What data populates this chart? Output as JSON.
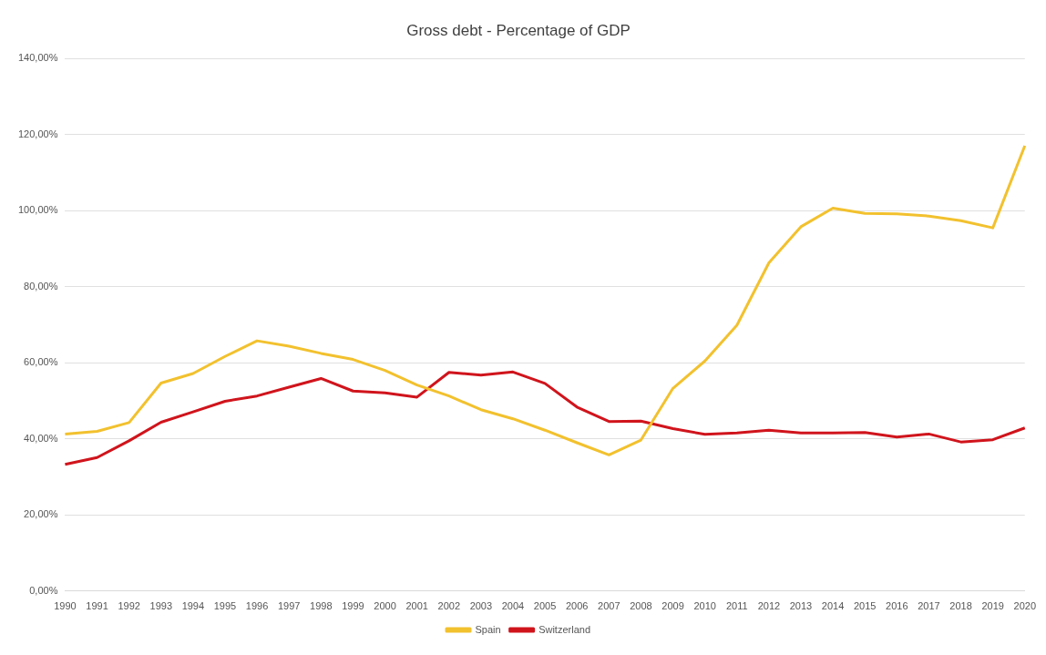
{
  "chart_data": {
    "type": "line",
    "title": "Gross debt - Percentage of GDP",
    "categories": [
      "1990",
      "1991",
      "1992",
      "1993",
      "1994",
      "1995",
      "1996",
      "1997",
      "1998",
      "1999",
      "2000",
      "2001",
      "2002",
      "2003",
      "2004",
      "2005",
      "2006",
      "2007",
      "2008",
      "2009",
      "2010",
      "2011",
      "2012",
      "2013",
      "2014",
      "2015",
      "2016",
      "2017",
      "2018",
      "2019",
      "2020"
    ],
    "series": [
      {
        "name": "Spain",
        "color": "#f2c12e",
        "values": [
          41.3,
          42,
          44.3,
          54.7,
          57.2,
          61.7,
          65.8,
          64.4,
          62.5,
          60.9,
          58,
          54.2,
          51.3,
          47.7,
          45.3,
          42.3,
          39,
          35.8,
          39.7,
          53.3,
          60.5,
          69.9,
          86.3,
          95.8,
          100.7,
          99.3,
          99.2,
          98.6,
          97.4,
          95.5,
          117.1
        ]
      },
      {
        "name": "Switzerland",
        "color": "#d0141c",
        "values": [
          33.3,
          35.1,
          39.5,
          44.4,
          47.1,
          49.9,
          51.3,
          53.6,
          55.9,
          52.6,
          52.1,
          51,
          57.5,
          56.8,
          57.6,
          54.6,
          48.4,
          44.6,
          44.7,
          42.7,
          41.2,
          41.6,
          42.3,
          41.6,
          41.6,
          41.7,
          40.5,
          41.3,
          39.2,
          39.8,
          42.9
        ]
      }
    ],
    "ylim": [
      0,
      140
    ],
    "yticks": [
      {
        "value": 0,
        "label": "0,00%"
      },
      {
        "value": 20,
        "label": "20,00%"
      },
      {
        "value": 40,
        "label": "40,00%"
      },
      {
        "value": 60,
        "label": "60,00%"
      },
      {
        "value": 80,
        "label": "80,00%"
      },
      {
        "value": 100,
        "label": "100,00%"
      },
      {
        "value": 120,
        "label": "120,00%"
      },
      {
        "value": 140,
        "label": "140,00%"
      }
    ],
    "grid": "y",
    "legend": "bottom",
    "marker": "none",
    "line_style": "solid"
  }
}
